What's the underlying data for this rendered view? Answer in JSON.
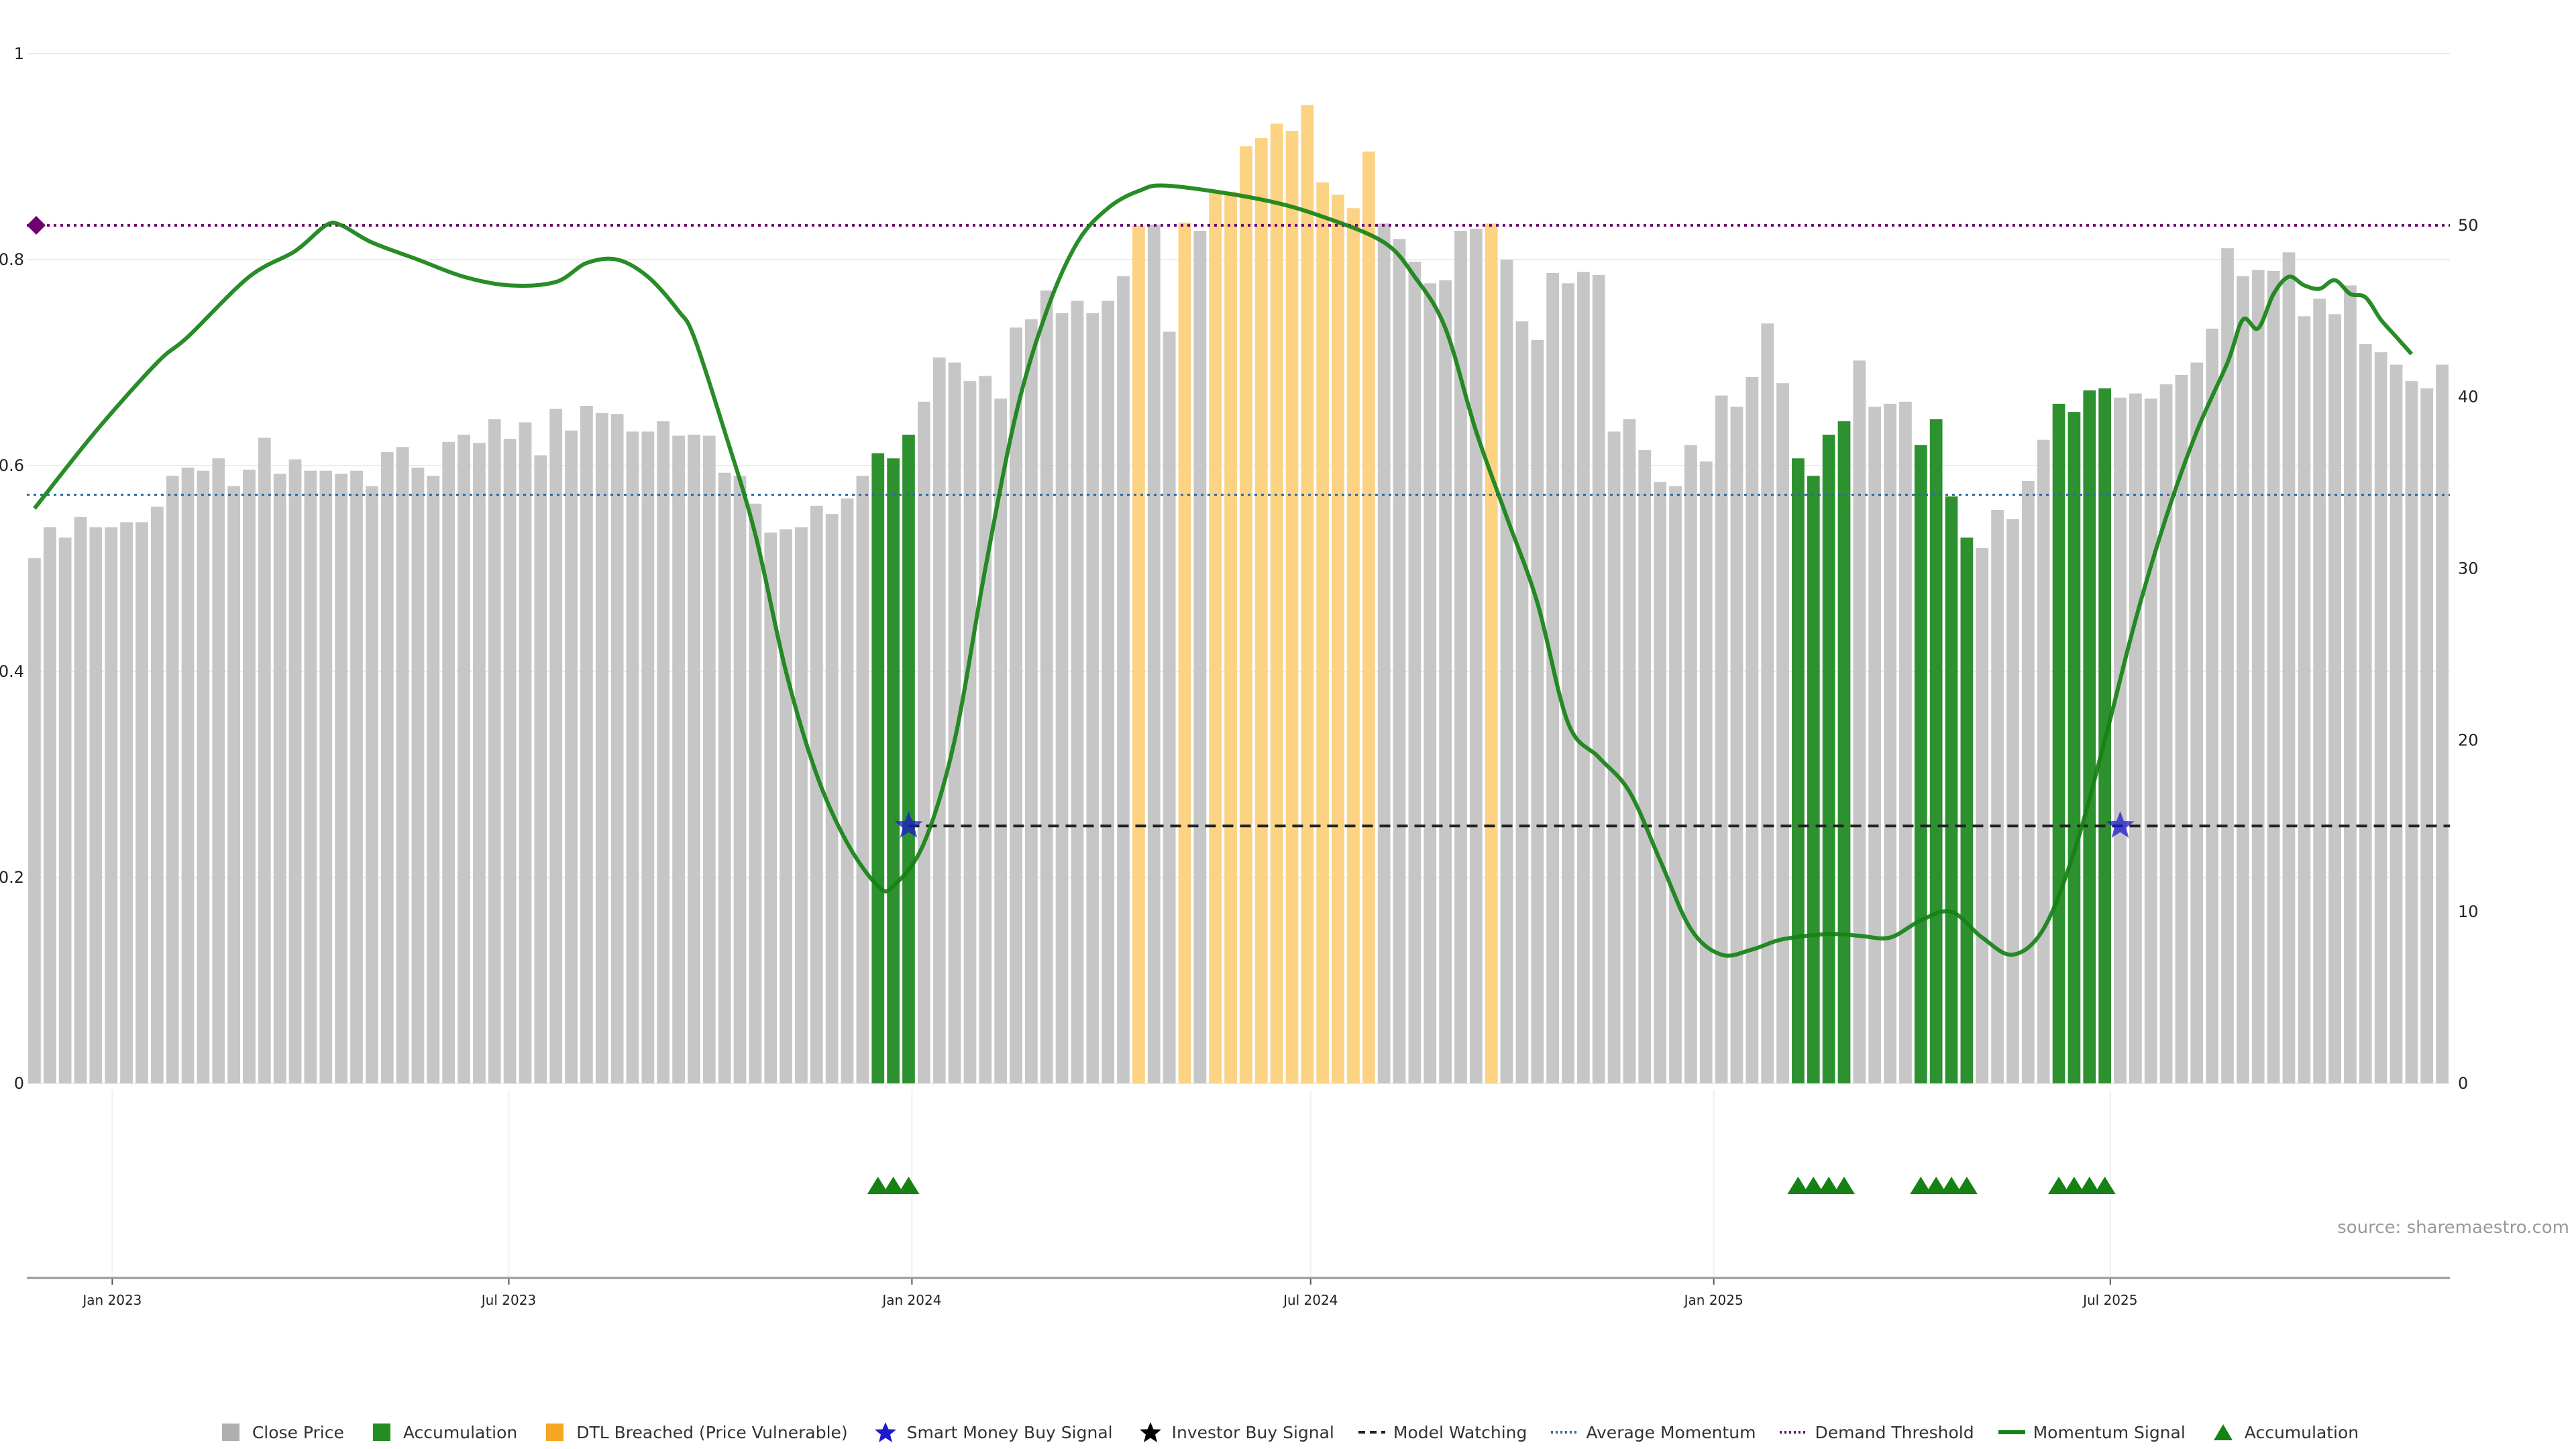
{
  "chart_data": {
    "type": "bar",
    "title": "",
    "xlabel": "",
    "left_axis": {
      "ylim": [
        0,
        1
      ],
      "ticks": [
        "0",
        "0.2",
        "0.4",
        "0.6",
        "0.8",
        "1"
      ]
    },
    "right_axis": {
      "ylim": [
        0,
        60
      ],
      "ticks": [
        "0",
        "10",
        "20",
        "30",
        "40",
        "50"
      ]
    },
    "x_ticks": [
      "Jan 2023",
      "Jul 2023",
      "Jan 2024",
      "Jul 2024",
      "Jan 2025",
      "Jul 2025"
    ],
    "date_range": [
      "2022-11-23",
      "2025-10-20"
    ],
    "bar_interval_days": 7,
    "close_price": [
      0.51,
      0.54,
      0.53,
      0.55,
      0.54,
      0.54,
      0.545,
      0.545,
      0.56,
      0.59,
      0.598,
      0.595,
      0.607,
      0.58,
      0.596,
      0.627,
      0.592,
      0.606,
      0.595,
      0.595,
      0.592,
      0.595,
      0.58,
      0.613,
      0.618,
      0.598,
      0.59,
      0.623,
      0.63,
      0.622,
      0.645,
      0.626,
      0.642,
      0.61,
      0.655,
      0.634,
      0.658,
      0.651,
      0.65,
      0.633,
      0.633,
      0.643,
      0.629,
      0.63,
      0.629,
      0.593,
      0.59,
      0.563,
      0.535,
      0.538,
      0.54,
      0.561,
      0.553,
      0.568,
      0.59,
      0.612,
      0.607,
      0.63,
      0.662,
      0.705,
      0.7,
      0.682,
      0.687,
      0.665,
      0.734,
      0.742,
      0.77,
      0.748,
      0.76,
      0.748,
      0.76,
      0.784,
      0.833,
      0.834,
      0.73,
      0.836,
      0.828,
      0.865,
      0.866,
      0.91,
      0.918,
      0.932,
      0.925,
      0.95,
      0.875,
      0.863,
      0.85,
      0.905,
      0.835,
      0.82,
      0.798,
      0.777,
      0.78,
      0.828,
      0.83,
      0.835,
      0.8,
      0.74,
      0.722,
      0.787,
      0.777,
      0.788,
      0.785,
      0.633,
      0.645,
      0.615,
      0.584,
      0.58,
      0.62,
      0.604,
      0.668,
      0.657,
      0.686,
      0.738,
      0.68,
      0.607,
      0.59,
      0.63,
      0.643,
      0.702,
      0.657,
      0.66,
      0.662,
      0.62,
      0.645,
      0.57,
      0.53,
      0.52,
      0.557,
      0.548,
      0.585,
      0.625,
      0.66,
      0.652,
      0.673,
      0.675,
      0.666,
      0.67,
      0.665,
      0.679,
      0.688,
      0.7,
      0.733,
      0.811,
      0.784,
      0.79,
      0.789,
      0.807,
      0.745,
      0.762,
      0.747,
      0.775,
      0.718,
      0.71,
      0.698,
      0.682,
      0.675,
      0.698
    ],
    "accumulation_bar_indices": [
      55,
      56,
      57,
      115,
      116,
      117,
      118,
      123,
      124,
      125,
      126,
      132,
      133,
      134,
      135
    ],
    "dtl_breached_bar_indices": [
      72,
      75,
      77,
      78,
      79,
      80,
      81,
      82,
      83,
      84,
      85,
      86,
      87,
      95
    ],
    "momentum_signal": [
      [
        0,
        33.5
      ],
      [
        4,
        38
      ],
      [
        8,
        42
      ],
      [
        10,
        43.5
      ],
      [
        14,
        47
      ],
      [
        17,
        48.5
      ],
      [
        19,
        50
      ],
      [
        20,
        50
      ],
      [
        22,
        49
      ],
      [
        25,
        48
      ],
      [
        28,
        47
      ],
      [
        31,
        46.5
      ],
      [
        34,
        46.7
      ],
      [
        36,
        47.8
      ],
      [
        38,
        48
      ],
      [
        40,
        47
      ],
      [
        42,
        45
      ],
      [
        43,
        43.5
      ],
      [
        45,
        38
      ],
      [
        47,
        32
      ],
      [
        49,
        24
      ],
      [
        51,
        18
      ],
      [
        53,
        14
      ],
      [
        55,
        11.5
      ],
      [
        56,
        11.5
      ],
      [
        58,
        14
      ],
      [
        60,
        20
      ],
      [
        62,
        30
      ],
      [
        64,
        39
      ],
      [
        66,
        45
      ],
      [
        68,
        49
      ],
      [
        70,
        51
      ],
      [
        72,
        52
      ],
      [
        74,
        52.3
      ],
      [
        80,
        51.5
      ],
      [
        84,
        50.5
      ],
      [
        88,
        49
      ],
      [
        90,
        47
      ],
      [
        92,
        44
      ],
      [
        94,
        38
      ],
      [
        96,
        33
      ],
      [
        98,
        28
      ],
      [
        100,
        21
      ],
      [
        102,
        19
      ],
      [
        104,
        17
      ],
      [
        106,
        13
      ],
      [
        108,
        9
      ],
      [
        110,
        7.5
      ],
      [
        112,
        7.8
      ],
      [
        114,
        8.4
      ],
      [
        117,
        8.7
      ],
      [
        119,
        8.6
      ],
      [
        121,
        8.5
      ],
      [
        123,
        9.5
      ],
      [
        125,
        10
      ],
      [
        127,
        8.5
      ],
      [
        129,
        7.5
      ],
      [
        131,
        9
      ],
      [
        133,
        13.5
      ],
      [
        135,
        20
      ],
      [
        137,
        27
      ],
      [
        139,
        33
      ],
      [
        141,
        38
      ],
      [
        143,
        42
      ],
      [
        144,
        44.5
      ],
      [
        145,
        44
      ],
      [
        146,
        46
      ],
      [
        147,
        47
      ],
      [
        148,
        46.5
      ],
      [
        149,
        46.3
      ],
      [
        150,
        46.8
      ],
      [
        151,
        46
      ],
      [
        152,
        45.8
      ],
      [
        153,
        44.5
      ],
      [
        154,
        43.5
      ],
      [
        155,
        42.5
      ]
    ],
    "demand_threshold": 50,
    "average_momentum": 34.3,
    "model_watching": 15,
    "model_watching_start_index": 57,
    "smart_money_buy_signals": [
      [
        57,
        15
      ],
      [
        136,
        15
      ]
    ],
    "legend": [
      "Close Price",
      "Accumulation",
      "DTL Breached (Price Vulnerable)",
      "Smart Money Buy Signal",
      "Investor Buy Signal",
      "Model Watching",
      "Average Momentum",
      "Demand Threshold",
      "Momentum Signal",
      "Accumulation"
    ],
    "source": "source: sharemaestro.com",
    "colors": {
      "close": "#c6c6c6",
      "accumulation": "#2e9130",
      "dtl": "#fcd283",
      "momentum": "#168216",
      "demand": "#700070",
      "average": "#2a6ca8",
      "watching": "#222222",
      "star": "#1a1acc",
      "triangle": "#168216",
      "legend_close": "#b0b0b0",
      "legend_accum": "#238c23",
      "legend_dtl": "#f5a623"
    }
  }
}
